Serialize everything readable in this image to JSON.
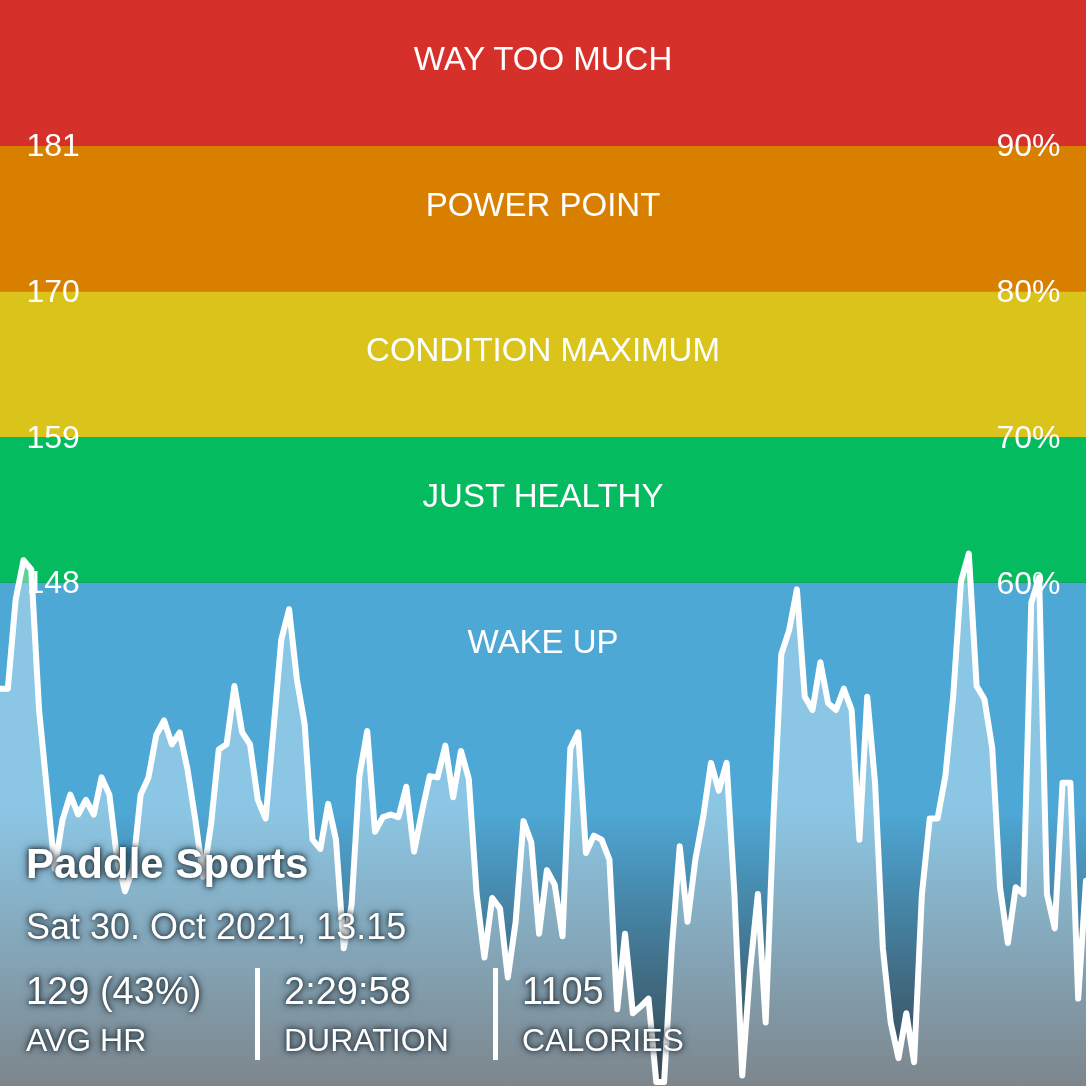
{
  "chart_data": {
    "type": "area",
    "title": "Paddle Sports",
    "subtitle": "Sat 30. Oct 2021, 13.15",
    "annotations": [
      "129 (43%)",
      "AVG HR",
      "2:29:58",
      "DURATION",
      "1105",
      "CALORIES"
    ],
    "categories": [
      null,
      null,
      null,
      null,
      null,
      null,
      null,
      null,
      null,
      null,
      null,
      null,
      null,
      null,
      null,
      null,
      null,
      null,
      null,
      null,
      null,
      null,
      null,
      null,
      null,
      null,
      null,
      null,
      null,
      null,
      null,
      null,
      null,
      null,
      null,
      null,
      null,
      null,
      null,
      null,
      null,
      null,
      null,
      null,
      null,
      null,
      null,
      null,
      null,
      null,
      null,
      null,
      null,
      null,
      null,
      null,
      null,
      null,
      null,
      null,
      null,
      null,
      null,
      null,
      null,
      null,
      null,
      null,
      null,
      null,
      null,
      null,
      null,
      null,
      null,
      null,
      null,
      null,
      null,
      null,
      null,
      null,
      null,
      null,
      null,
      null,
      null,
      null,
      null,
      null,
      null,
      null,
      null,
      null,
      null,
      null,
      null,
      null,
      null,
      null,
      null,
      null,
      null,
      null,
      null,
      null,
      null,
      null,
      null,
      null,
      null,
      null,
      null,
      null,
      null,
      null,
      null,
      null,
      null,
      null,
      null,
      null,
      null,
      null,
      null,
      null,
      null,
      null,
      null,
      null,
      null,
      null,
      null,
      null,
      null,
      null,
      null,
      null,
      null,
      null
    ],
    "series": [
      {
        "color": "#ffffff",
        "values": [
          140,
          140,
          146.7,
          149.7,
          149,
          138.4,
          132.4,
          126.4,
          130.1,
          132,
          130.5,
          131.6,
          130.5,
          133.3,
          132,
          127.1,
          124.7,
          126.4,
          132,
          133.3,
          136.5,
          137.6,
          135.8,
          136.7,
          133.9,
          130.1,
          125.8,
          129.7,
          135.4,
          135.8,
          140.2,
          136.7,
          135.8,
          131.6,
          130.2,
          136.9,
          143.7,
          146,
          140.7,
          137.3,
          128.6,
          127.9,
          131.3,
          128.6,
          120.4,
          123.7,
          133.4,
          136.8,
          129.2,
          130.3,
          130.5,
          130.3,
          132.6,
          127.7,
          130.7,
          133.4,
          133.3,
          135.7,
          131.8,
          135.3,
          133.2,
          124.5,
          119.7,
          124.2,
          123.4,
          118.2,
          122.4,
          130,
          128.4,
          121.5,
          126.3,
          125.2,
          121.3,
          135.5,
          136.7,
          127.6,
          128.9,
          128.6,
          127.1,
          115.8,
          121.5,
          115.5,
          116,
          116.6,
          110.3,
          110.3,
          120.5,
          128.1,
          122.4,
          127.1,
          130.3,
          134.4,
          132.3,
          134.4,
          124.5,
          110.8,
          118.7,
          124.5,
          114.8,
          130.2,
          142.6,
          144.4,
          147.5,
          139.4,
          138.4,
          142,
          138.9,
          138.4,
          140,
          138.4,
          128.6,
          139.4,
          132.9,
          120.4,
          114.8,
          112.1,
          115.5,
          111.8,
          124.5,
          130.2,
          130.2,
          133.4,
          139.4,
          148.1,
          150.2,
          140.2,
          139.2,
          135.5,
          125,
          120.8,
          125,
          124.5,
          146.5,
          148.4,
          124.5,
          121.9,
          132.9,
          132.9,
          116.6,
          125.5
        ]
      }
    ],
    "ylim": [
      110,
      192
    ],
    "yticks": [
      148,
      159,
      170,
      181
    ],
    "y2lim": [
      25.5,
      100
    ],
    "y2ticks": [
      {
        "value": 60,
        "label": "60%"
      },
      {
        "value": 70,
        "label": "70%"
      },
      {
        "value": 80,
        "label": "80%"
      },
      {
        "value": 90,
        "label": "90%"
      }
    ],
    "bands": [
      {
        "axis": "y",
        "from": 110,
        "to": 148,
        "label": "WAKE UP",
        "color": "#4ea8d6"
      },
      {
        "axis": "y",
        "from": 148,
        "to": 159,
        "label": "JUST HEALTHY",
        "color": "#05bb5f"
      },
      {
        "axis": "y",
        "from": 159,
        "to": 170,
        "label": "CONDITION MAXIMUM",
        "color": "#dac41b"
      },
      {
        "axis": "y",
        "from": 170,
        "to": 181,
        "label": "POWER POINT",
        "color": "#d87f00"
      },
      {
        "axis": "y",
        "from": 181,
        "to": 192,
        "label": "WAY TOO MUCH",
        "color": "#d6302b"
      }
    ]
  }
}
